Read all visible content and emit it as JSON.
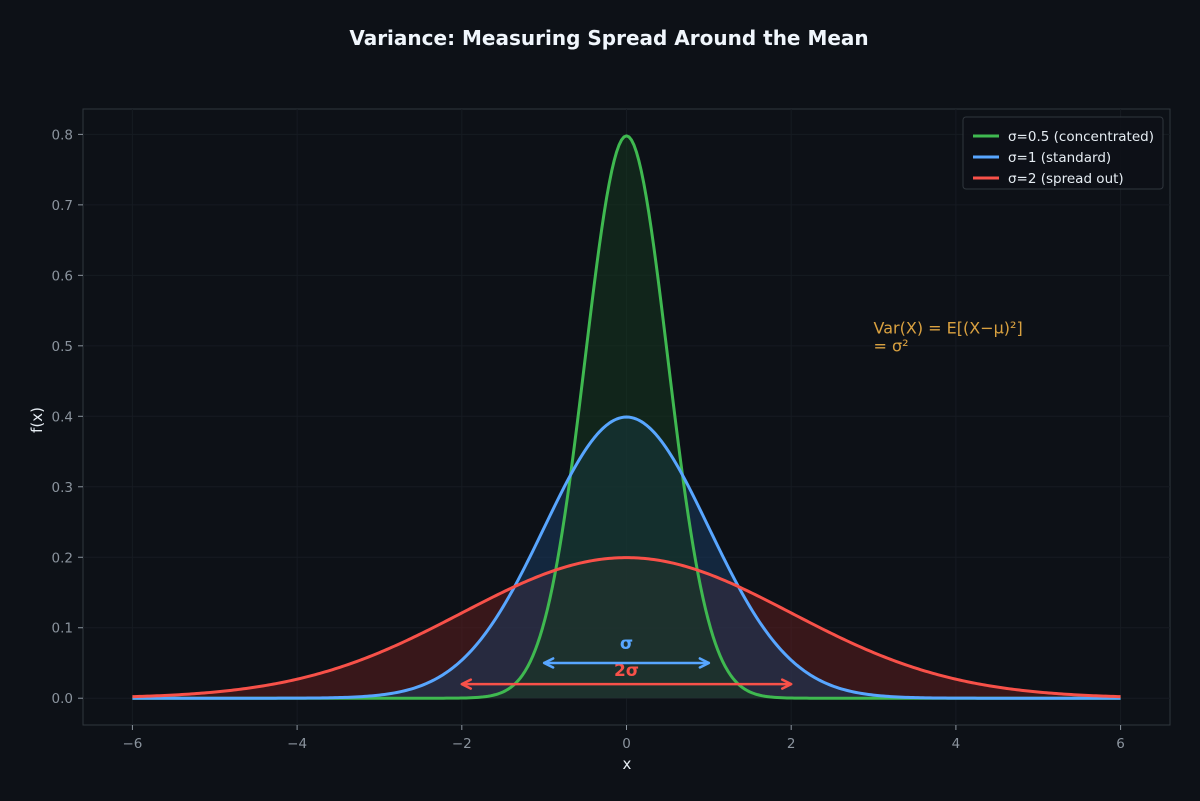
{
  "chart_data": {
    "type": "line",
    "title": "Variance: Measuring Spread Around the Mean",
    "xlabel": "x",
    "ylabel": "f(x)",
    "xlim": [
      -6.6,
      6.6
    ],
    "ylim": [
      -0.038,
      0.836
    ],
    "x_ticks": [
      -6,
      -4,
      -2,
      0,
      2,
      4,
      6
    ],
    "x_tick_labels": [
      "−6",
      "−4",
      "−2",
      "0",
      "2",
      "4",
      "6"
    ],
    "y_ticks": [
      0.0,
      0.1,
      0.2,
      0.3,
      0.4,
      0.5,
      0.6,
      0.7,
      0.8
    ],
    "y_tick_labels": [
      "0.0",
      "0.1",
      "0.2",
      "0.3",
      "0.4",
      "0.5",
      "0.6",
      "0.7",
      "0.8"
    ],
    "x_range": [
      -6,
      6
    ],
    "grid": true,
    "legend_position": "top-right",
    "series": [
      {
        "name": "σ=0.5 (concentrated)",
        "mu": 0,
        "sigma": 0.5,
        "peak": 0.798,
        "color": "#3fb950",
        "fill": "#16361f"
      },
      {
        "name": "σ=1 (standard)",
        "mu": 0,
        "sigma": 1,
        "peak": 0.399,
        "color": "#58a6ff",
        "fill": "#1a3a5e"
      },
      {
        "name": "σ=2 (spread out)",
        "mu": 0,
        "sigma": 2,
        "peak": 0.199,
        "color": "#f85149",
        "fill": "#5c1e1e"
      }
    ],
    "annotations": {
      "formula_line1": "Var(X) = E[(X−μ)²]",
      "formula_line2": "= σ²",
      "formula_x": 3.0,
      "formula_y": 0.52,
      "formula_color": "#d9a140",
      "sigma_arrow": {
        "label": "σ",
        "x_from": -1,
        "x_to": 1,
        "y": 0.05,
        "label_y": 0.078,
        "color": "#58a6ff"
      },
      "two_sigma_arrow": {
        "label": "2σ",
        "x_from": -2,
        "x_to": 2,
        "y": 0.02,
        "label_y": 0.04,
        "color": "#f85149"
      }
    }
  }
}
